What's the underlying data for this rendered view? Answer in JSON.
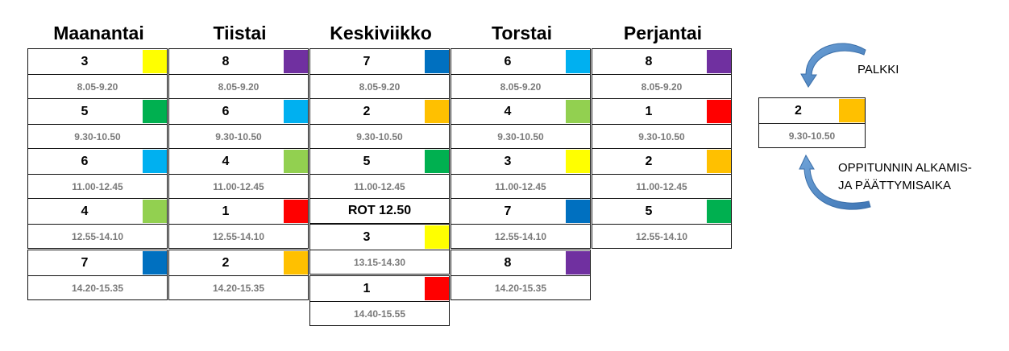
{
  "days": [
    "Maanantai",
    "Tiistai",
    "Keskiviikko",
    "Torstai",
    "Perjantai"
  ],
  "colors": {
    "yellow": "#FFFF00",
    "purple": "#7030A0",
    "blue": "#0070C0",
    "lightblue": "#00B0F0",
    "green": "#00B050",
    "orange": "#FFC000",
    "lightgreen": "#92D050",
    "red": "#FF0000"
  },
  "schedule": {
    "maanantai": [
      {
        "num": "3",
        "color": "yellow",
        "time": "8.05-9.20"
      },
      {
        "num": "5",
        "color": "green",
        "time": "9.30-10.50"
      },
      {
        "num": "6",
        "color": "lightblue",
        "time": "11.00-12.45"
      },
      {
        "num": "4",
        "color": "lightgreen",
        "time": "12.55-14.10"
      },
      {
        "num": "7",
        "color": "blue",
        "time": "14.20-15.35"
      }
    ],
    "tiistai": [
      {
        "num": "8",
        "color": "purple",
        "time": "8.05-9.20"
      },
      {
        "num": "6",
        "color": "lightblue",
        "time": "9.30-10.50"
      },
      {
        "num": "4",
        "color": "lightgreen",
        "time": "11.00-12.45"
      },
      {
        "num": "1",
        "color": "red",
        "time": "12.55-14.10"
      },
      {
        "num": "2",
        "color": "orange",
        "time": "14.20-15.35"
      }
    ],
    "keskiviikko": [
      {
        "num": "7",
        "color": "blue",
        "time": "8.05-9.20"
      },
      {
        "num": "2",
        "color": "orange",
        "time": "9.30-10.50"
      },
      {
        "num": "5",
        "color": "green",
        "time": "11.00-12.45"
      },
      {
        "num": "3",
        "color": "yellow",
        "time": "13.15-14.30"
      },
      {
        "num": "1",
        "color": "red",
        "time": "14.40-15.55"
      }
    ],
    "rot_label": "ROT 12.50",
    "torstai": [
      {
        "num": "6",
        "color": "lightblue",
        "time": "8.05-9.20"
      },
      {
        "num": "4",
        "color": "lightgreen",
        "time": "9.30-10.50"
      },
      {
        "num": "3",
        "color": "yellow",
        "time": "11.00-12.45"
      },
      {
        "num": "7",
        "color": "blue",
        "time": "12.55-14.10"
      },
      {
        "num": "8",
        "color": "purple",
        "time": "14.20-15.35"
      }
    ],
    "perjantai": [
      {
        "num": "8",
        "color": "purple",
        "time": "8.05-9.20"
      },
      {
        "num": "1",
        "color": "red",
        "time": "9.30-10.50"
      },
      {
        "num": "2",
        "color": "orange",
        "time": "11.00-12.45"
      },
      {
        "num": "5",
        "color": "green",
        "time": "12.55-14.10"
      }
    ]
  },
  "legend": {
    "example": {
      "num": "2",
      "color": "orange",
      "time": "9.30-10.50"
    },
    "palkki_label": "PALKKI",
    "time_label_line1": "OPPITUNNIN ALKAMIS-",
    "time_label_line2": "JA PÄÄTTYMISAIKA"
  }
}
